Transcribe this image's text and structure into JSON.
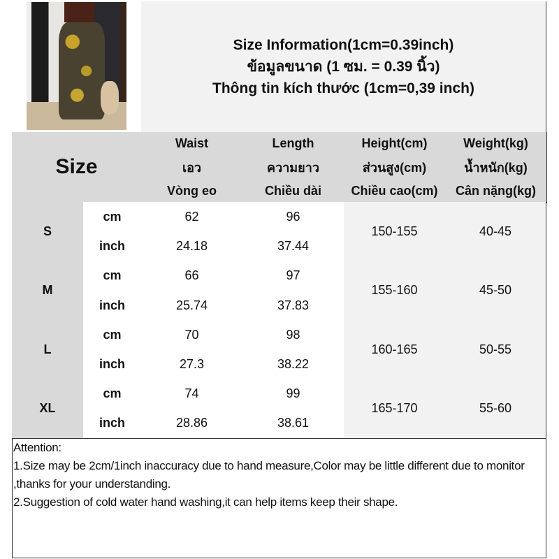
{
  "title_lines": [
    "Size Information(1cm=0.39inch)",
    "ข้อมูลขนาด (1 ซม. = 0.39 นิ้ว)",
    "Thông tin kích thước (1cm=0,39 inch)"
  ],
  "size_header": "Size",
  "columns": [
    {
      "en": "Waist",
      "th": "เอว",
      "vi": "Vòng eo"
    },
    {
      "en": "Length",
      "th": "ความยาว",
      "vi": "Chiều dài"
    },
    {
      "en": "Height(cm)",
      "th": "ส่วนสูง(cm)",
      "vi": "Chiều cao(cm)"
    },
    {
      "en": "Weight(kg)",
      "th": "น้ำหนัก(kg)",
      "vi": "Cân nặng(kg)"
    }
  ],
  "units": {
    "cm": "cm",
    "inch": "inch"
  },
  "rows": [
    {
      "size": "S",
      "cm": {
        "waist": "62",
        "length": "96"
      },
      "inch": {
        "waist": "24.18",
        "length": "37.44"
      },
      "height": "150-155",
      "weight": "40-45"
    },
    {
      "size": "M",
      "cm": {
        "waist": "66",
        "length": "97"
      },
      "inch": {
        "waist": "25.74",
        "length": "37.83"
      },
      "height": "155-160",
      "weight": "45-50"
    },
    {
      "size": "L",
      "cm": {
        "waist": "70",
        "length": "98"
      },
      "inch": {
        "waist": "27.3",
        "length": "38.22"
      },
      "height": "160-165",
      "weight": "50-55"
    },
    {
      "size": "XL",
      "cm": {
        "waist": "74",
        "length": "99"
      },
      "inch": {
        "waist": "28.86",
        "length": "38.61"
      },
      "height": "165-170",
      "weight": "55-60"
    }
  ],
  "attention": {
    "heading": "Attention:",
    "note1": "1.Size may be 2cm/1inch inaccuracy due to hand measure,Color may be little different due to monitor ,thanks for your understanding.",
    "note2": "2.Suggestion of cold water hand washing,it can help items keep their shape."
  }
}
